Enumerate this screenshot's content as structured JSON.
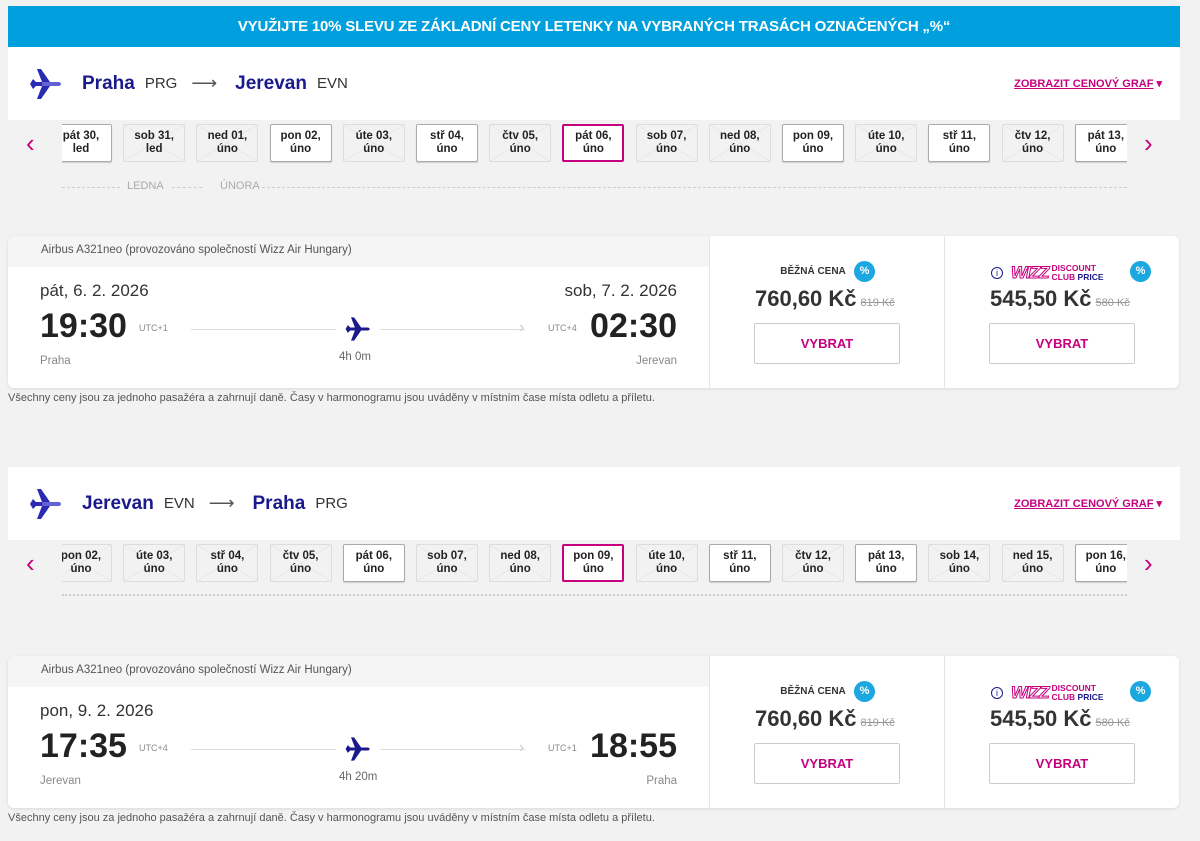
{
  "banner": "VYUŽIJTE 10% SLEVU ZE ZÁKLADNÍ CENY LETENKY NA VYBRANÝCH TRASÁCH OZNAČENÝCH „%“",
  "colors": {
    "accent": "#c6007e",
    "brand": "#1b1a8c",
    "banner": "#00a0de"
  },
  "flights": [
    {
      "route": {
        "from_city": "Praha",
        "from_code": "PRG",
        "to_city": "Jerevan",
        "to_code": "EVN",
        "arrow": "⟶",
        "graph_link": "ZOBRAZIT CENOVÝ GRAF",
        "graph_icon": "▾"
      },
      "dates": [
        {
          "d": "pát 30,",
          "m": "led",
          "s": "av"
        },
        {
          "d": "sob 31,",
          "m": "led",
          "s": "na"
        },
        {
          "d": "ned 01,",
          "m": "úno",
          "s": "na"
        },
        {
          "d": "pon 02,",
          "m": "úno",
          "s": "av"
        },
        {
          "d": "úte 03,",
          "m": "úno",
          "s": "na"
        },
        {
          "d": "stř 04,",
          "m": "úno",
          "s": "av"
        },
        {
          "d": "čtv 05,",
          "m": "úno",
          "s": "na"
        },
        {
          "d": "pát 06,",
          "m": "úno",
          "s": "sel"
        },
        {
          "d": "sob 07,",
          "m": "úno",
          "s": "na"
        },
        {
          "d": "ned 08,",
          "m": "úno",
          "s": "na"
        },
        {
          "d": "pon 09,",
          "m": "úno",
          "s": "av"
        },
        {
          "d": "úte 10,",
          "m": "úno",
          "s": "na"
        },
        {
          "d": "stř 11,",
          "m": "úno",
          "s": "av"
        },
        {
          "d": "čtv 12,",
          "m": "úno",
          "s": "na"
        },
        {
          "d": "pát 13,",
          "m": "úno",
          "s": "av"
        }
      ],
      "months": [
        "LEDNA",
        "ÚNORA"
      ],
      "aircraft": "Airbus A321neo (provozováno společností Wizz Air Hungary)",
      "dep_date": "pát, 6. 2. 2026",
      "arr_date": "sob, 7. 2. 2026",
      "dep_time": "19:30",
      "dep_utc": "UTC+1",
      "arr_time": "02:30",
      "arr_utc": "UTC+4",
      "dep_place": "Praha",
      "arr_place": "Jerevan",
      "duration": "4h 0m",
      "regular": {
        "label": "BĚŽNÁ CENA",
        "price": "760,60 Kč",
        "old": "819 Kč",
        "button": "VYBRAT"
      },
      "club": {
        "info": "i",
        "logo": "WIZZ",
        "label1": "DISCOUNT",
        "label2a": "CLUB",
        "label2b": "PRICE",
        "price": "545,50 Kč",
        "old": "580 Kč",
        "button": "VYBRAT"
      },
      "pct": "%",
      "note": "Všechny ceny jsou za jednoho pasažéra a zahrnují daně. Časy v harmonogramu jsou uváděny v místním čase místa odletu a příletu."
    },
    {
      "route": {
        "from_city": "Jerevan",
        "from_code": "EVN",
        "to_city": "Praha",
        "to_code": "PRG",
        "arrow": "⟶",
        "graph_link": "ZOBRAZIT CENOVÝ GRAF",
        "graph_icon": "▾"
      },
      "dates": [
        {
          "d": "pon 02,",
          "m": "úno",
          "s": "na"
        },
        {
          "d": "úte 03,",
          "m": "úno",
          "s": "na"
        },
        {
          "d": "stř 04,",
          "m": "úno",
          "s": "na"
        },
        {
          "d": "čtv 05,",
          "m": "úno",
          "s": "na"
        },
        {
          "d": "pát 06,",
          "m": "úno",
          "s": "av"
        },
        {
          "d": "sob 07,",
          "m": "úno",
          "s": "na"
        },
        {
          "d": "ned 08,",
          "m": "úno",
          "s": "na"
        },
        {
          "d": "pon 09,",
          "m": "úno",
          "s": "sel"
        },
        {
          "d": "úte 10,",
          "m": "úno",
          "s": "na"
        },
        {
          "d": "stř 11,",
          "m": "úno",
          "s": "av"
        },
        {
          "d": "čtv 12,",
          "m": "úno",
          "s": "na"
        },
        {
          "d": "pát 13,",
          "m": "úno",
          "s": "av"
        },
        {
          "d": "sob 14,",
          "m": "úno",
          "s": "na"
        },
        {
          "d": "ned 15,",
          "m": "úno",
          "s": "na"
        },
        {
          "d": "pon 16,",
          "m": "úno",
          "s": "av"
        }
      ],
      "months": [],
      "aircraft": "Airbus A321neo (provozováno společností Wizz Air Hungary)",
      "dep_date": "pon, 9. 2. 2026",
      "arr_date": "",
      "dep_time": "17:35",
      "dep_utc": "UTC+4",
      "arr_time": "18:55",
      "arr_utc": "UTC+1",
      "dep_place": "Jerevan",
      "arr_place": "Praha",
      "duration": "4h 20m",
      "regular": {
        "label": "BĚŽNÁ CENA",
        "price": "760,60 Kč",
        "old": "819 Kč",
        "button": "VYBRAT"
      },
      "club": {
        "info": "i",
        "logo": "WIZZ",
        "label1": "DISCOUNT",
        "label2a": "CLUB",
        "label2b": "PRICE",
        "price": "545,50 Kč",
        "old": "580 Kč",
        "button": "VYBRAT"
      },
      "pct": "%",
      "note": "Všechny ceny jsou za jednoho pasažéra a zahrnují daně. Časy v harmonogramu jsou uváděny v místním čase místa odletu a příletu."
    }
  ]
}
